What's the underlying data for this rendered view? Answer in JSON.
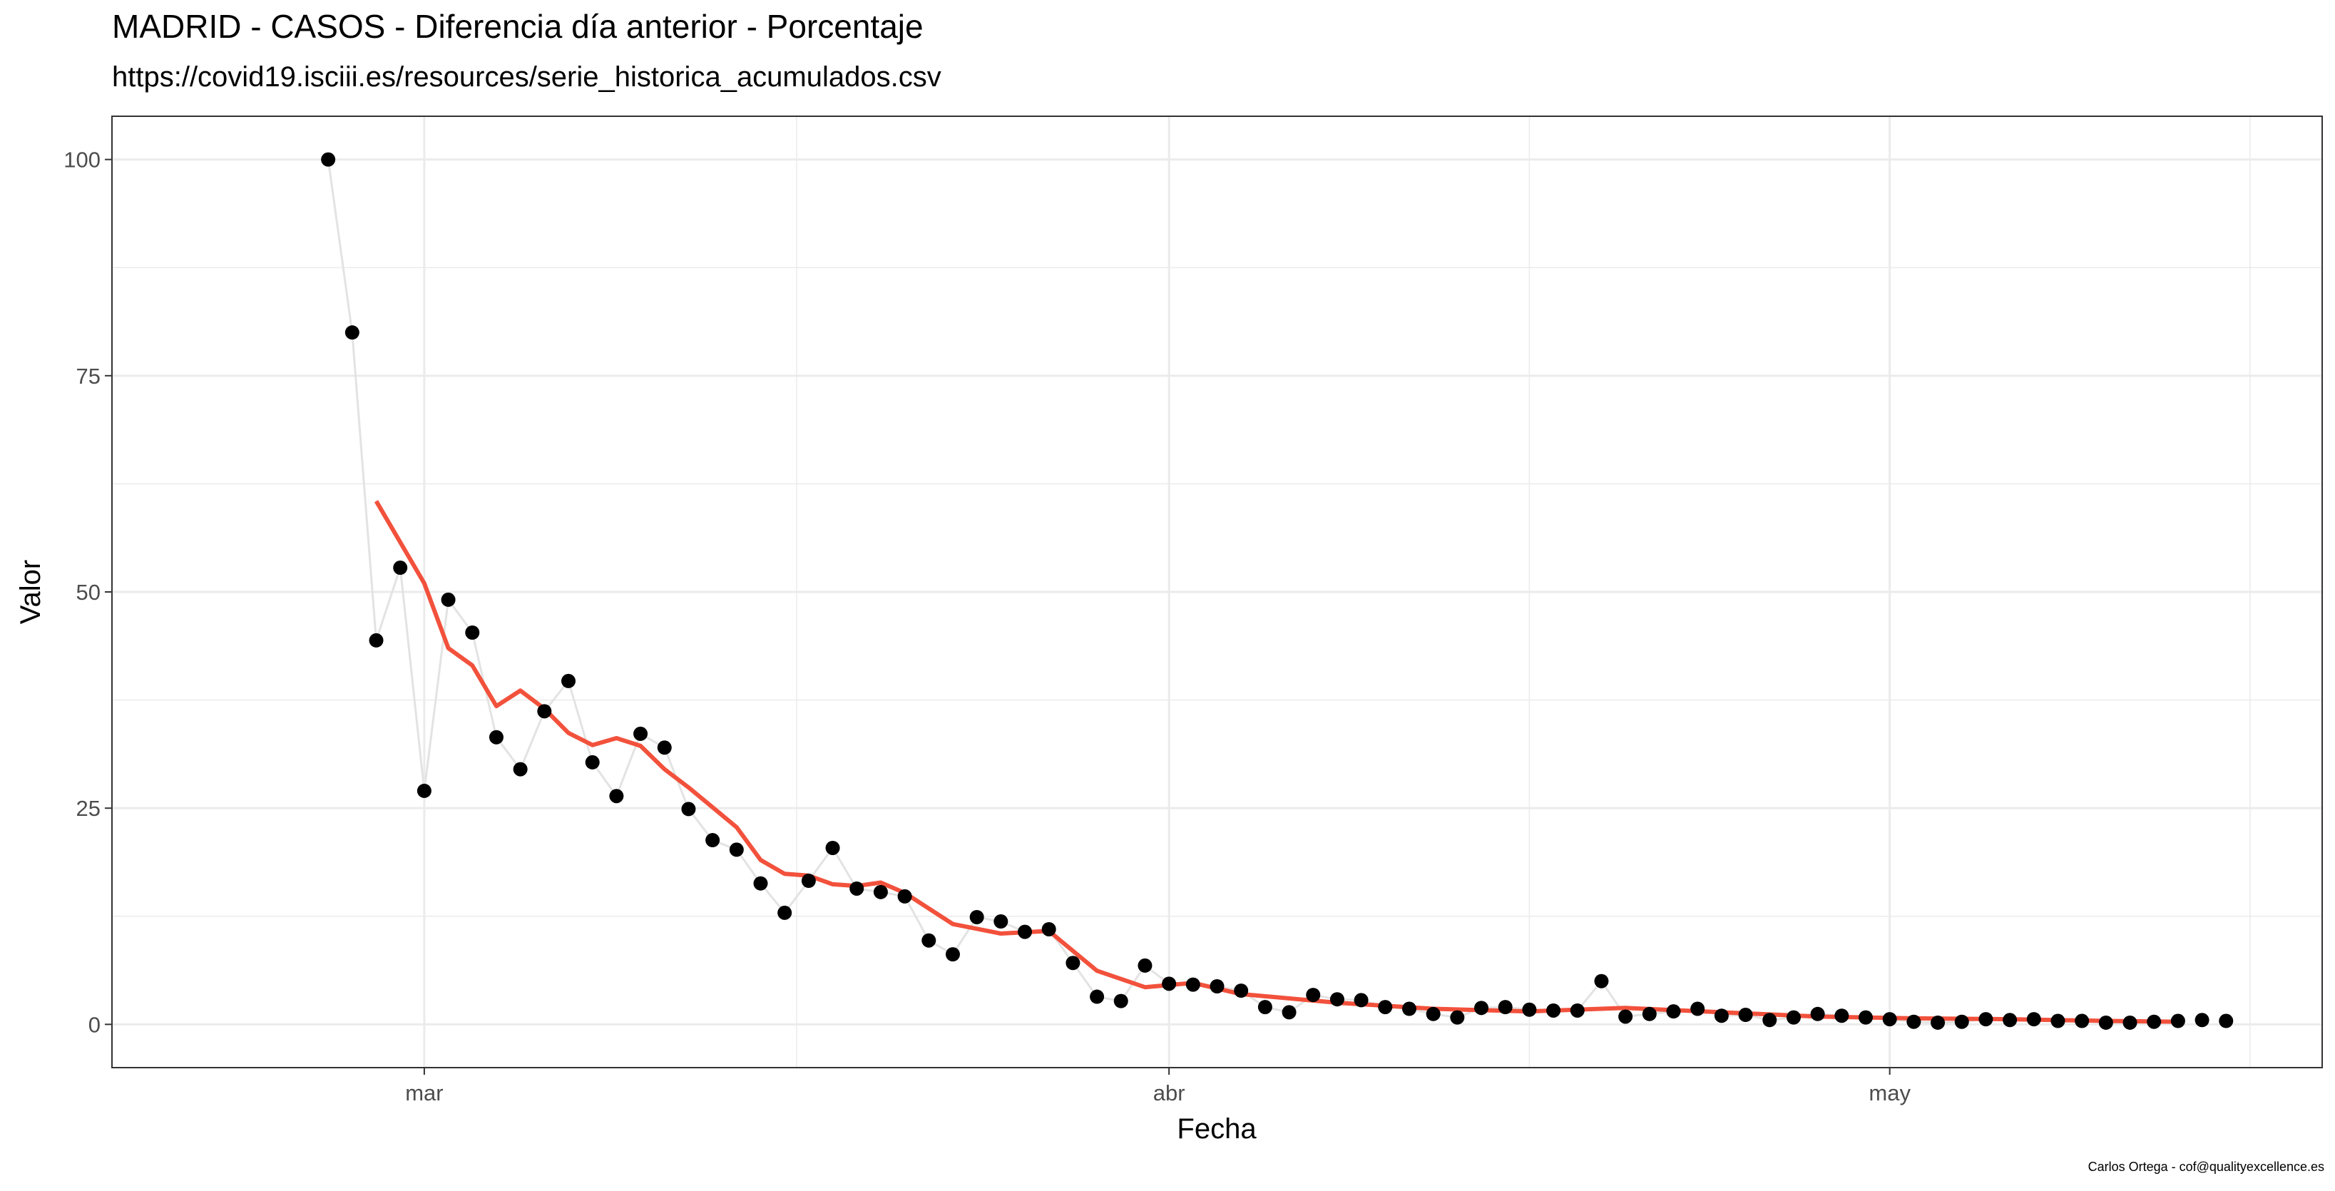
{
  "title": "MADRID - CASOS - Diferencia día anterior - Porcentaje",
  "subtitle": "https://covid19.isciii.es/resources/serie_historica_acumulados.csv",
  "caption": "Carlos Ortega - cof@qualityexcellence.es",
  "colors": {
    "points": "#000000",
    "raw_line": "#e3e3e3",
    "smooth_line": "#f2513c",
    "grid": "#ebebeb",
    "panel_border": "#333333"
  },
  "chart_data": {
    "type": "scatter",
    "title": "MADRID - CASOS - Diferencia día anterior - Porcentaje",
    "subtitle": "https://covid19.isciii.es/resources/serie_historica_acumulados.csv",
    "xlabel": "Fecha",
    "ylabel": "Valor",
    "ylim": [
      -5,
      105
    ],
    "xlim": [
      "2020-02-17",
      "2020-05-19"
    ],
    "x_ticks": [
      {
        "date": "2020-03-01",
        "label": "mar"
      },
      {
        "date": "2020-04-01",
        "label": "abr"
      },
      {
        "date": "2020-05-01",
        "label": "may"
      }
    ],
    "y_ticks": [
      0,
      25,
      50,
      75,
      100
    ],
    "grid": true,
    "legend": "none",
    "series": [
      {
        "kind": "points",
        "x": [
          "2020-02-26",
          "2020-02-27",
          "2020-02-28",
          "2020-02-29",
          "2020-03-01",
          "2020-03-02",
          "2020-03-03",
          "2020-03-04",
          "2020-03-05",
          "2020-03-06",
          "2020-03-07",
          "2020-03-08",
          "2020-03-09",
          "2020-03-10",
          "2020-03-11",
          "2020-03-12",
          "2020-03-13",
          "2020-03-14",
          "2020-03-15",
          "2020-03-16",
          "2020-03-17",
          "2020-03-18",
          "2020-03-19",
          "2020-03-20",
          "2020-03-21",
          "2020-03-22",
          "2020-03-23",
          "2020-03-24",
          "2020-03-25",
          "2020-03-26",
          "2020-03-27",
          "2020-03-28",
          "2020-03-29",
          "2020-03-30",
          "2020-03-31",
          "2020-04-01",
          "2020-04-02",
          "2020-04-03",
          "2020-04-04",
          "2020-04-05",
          "2020-04-06",
          "2020-04-07",
          "2020-04-08",
          "2020-04-09",
          "2020-04-10",
          "2020-04-11",
          "2020-04-12",
          "2020-04-13",
          "2020-04-14",
          "2020-04-15",
          "2020-04-16",
          "2020-04-17",
          "2020-04-18",
          "2020-04-19",
          "2020-04-20",
          "2020-04-21",
          "2020-04-22",
          "2020-04-23",
          "2020-04-24",
          "2020-04-25",
          "2020-04-26",
          "2020-04-27",
          "2020-04-28",
          "2020-04-29",
          "2020-04-30",
          "2020-05-01",
          "2020-05-02",
          "2020-05-03",
          "2020-05-04",
          "2020-05-05",
          "2020-05-06",
          "2020-05-07",
          "2020-05-08",
          "2020-05-09",
          "2020-05-10",
          "2020-05-11",
          "2020-05-12",
          "2020-05-13"
        ],
        "y": [
          100,
          80,
          44.4,
          52.8,
          27,
          49.1,
          45.3,
          33.2,
          29.5,
          36.2,
          39.7,
          30.3,
          26.4,
          33.6,
          32,
          24.9,
          21.3,
          20.2,
          16.3,
          12.9,
          16.6,
          20.4,
          15.7,
          15.3,
          14.8,
          9.7,
          8.1,
          12.4,
          11.9,
          10.7,
          11,
          7.1,
          3.2,
          2.7,
          6.8,
          4.7,
          4.6,
          4.4,
          3.9,
          2,
          1.4,
          3.4,
          2.9,
          2.8,
          2,
          1.8,
          1.2,
          0.8,
          1.9,
          2,
          1.7,
          1.6,
          1.6,
          5,
          0.9,
          1.2,
          1.5,
          1.8,
          1,
          1.1,
          0.5,
          0.8,
          1.2,
          1,
          0.8,
          0.6,
          0.3,
          0.2,
          0.3,
          0.6,
          0.5,
          0.6,
          0.4,
          0.4,
          0.2,
          0.2,
          0.3,
          0.4
        ],
        "x_extra": [
          "2020-05-14",
          "2020-05-15"
        ],
        "y_extra": [
          0.5,
          0.4
        ]
      },
      {
        "kind": "smooth",
        "x": [
          "2020-02-28",
          "2020-03-01",
          "2020-03-02",
          "2020-03-03",
          "2020-03-04",
          "2020-03-05",
          "2020-03-06",
          "2020-03-07",
          "2020-03-08",
          "2020-03-09",
          "2020-03-10",
          "2020-03-11",
          "2020-03-12",
          "2020-03-14",
          "2020-03-15",
          "2020-03-16",
          "2020-03-17",
          "2020-03-18",
          "2020-03-19",
          "2020-03-20",
          "2020-03-21",
          "2020-03-23",
          "2020-03-25",
          "2020-03-27",
          "2020-03-29",
          "2020-03-31",
          "2020-04-02",
          "2020-04-04",
          "2020-04-08",
          "2020-04-12",
          "2020-04-16",
          "2020-04-20",
          "2020-04-24",
          "2020-04-28",
          "2020-05-02",
          "2020-05-06",
          "2020-05-10",
          "2020-05-13"
        ],
        "y": [
          60.5,
          51,
          43.5,
          41.5,
          36.8,
          38.6,
          36.5,
          33.7,
          32.3,
          33.1,
          32.2,
          29.5,
          27.4,
          22.8,
          19,
          17.4,
          17.2,
          16.2,
          16,
          16.4,
          15.2,
          11.6,
          10.5,
          10.8,
          6.2,
          4.3,
          4.8,
          3.5,
          2.5,
          1.8,
          1.5,
          1.9,
          1.4,
          0.9,
          0.7,
          0.6,
          0.4,
          0.3
        ]
      }
    ]
  }
}
